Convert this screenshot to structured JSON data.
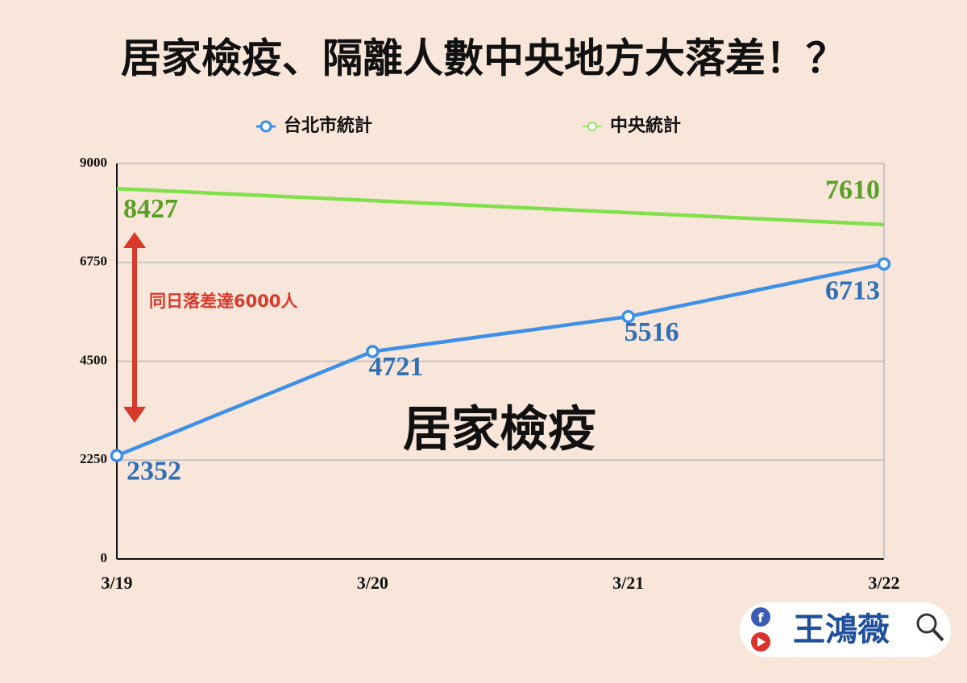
{
  "chart_data": {
    "type": "line",
    "title": "居家檢疫、隔離人數中央地方大落差！？",
    "categories": [
      "3/19",
      "3/20",
      "3/21",
      "3/22"
    ],
    "series": [
      {
        "name": "台北市統計",
        "color": "#3d8fe8",
        "label_color": "#2f6fb5",
        "markers": true,
        "values": [
          2352,
          4721,
          5516,
          6713
        ]
      },
      {
        "name": "中央統計",
        "color": "#7fe04a",
        "label_color": "#5aa028",
        "markers": false,
        "x": [
          "3/19",
          "3/22"
        ],
        "values": [
          8427,
          7610
        ]
      }
    ],
    "ylim": [
      0,
      9000
    ],
    "yticks": [
      0,
      2250,
      4500,
      6750,
      9000
    ],
    "grid": true,
    "annotations": [
      "同日落差達6000人",
      "居家檢疫",
      "王鴻薇"
    ]
  }
}
